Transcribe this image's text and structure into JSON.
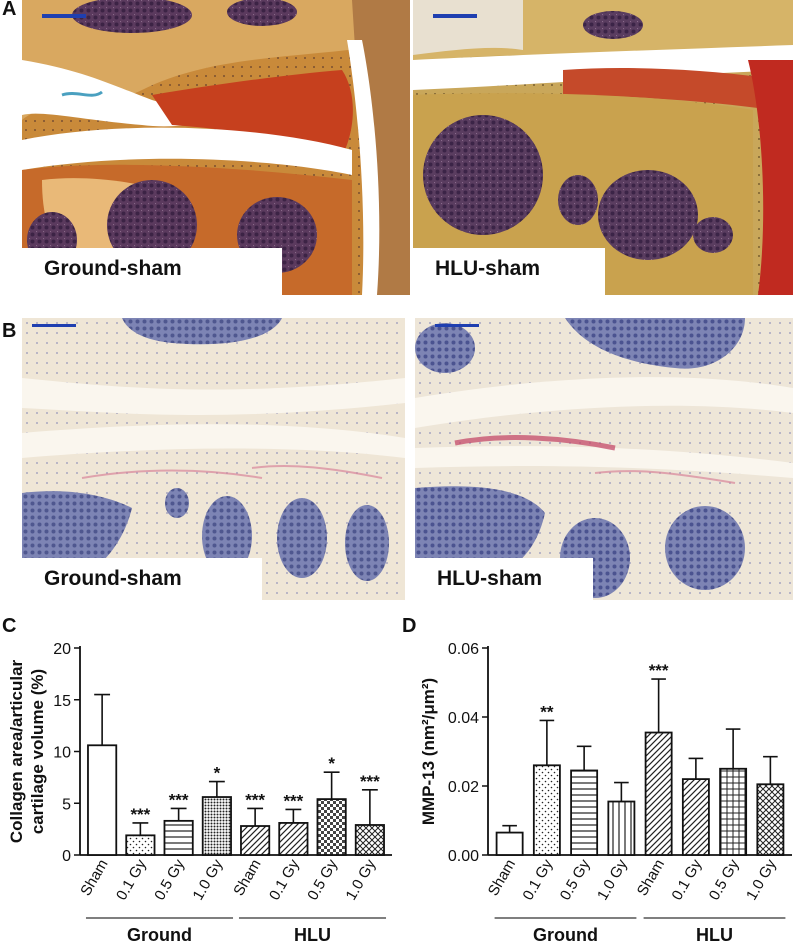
{
  "panels": {
    "A": {
      "letter": "A",
      "left_label": "Ground-sham",
      "right_label": "HLU-sham"
    },
    "B": {
      "letter": "B",
      "left_label": "Ground-sham",
      "right_label": "HLU-sham"
    },
    "C": {
      "letter": "C"
    },
    "D": {
      "letter": "D"
    }
  },
  "colors": {
    "stain_A_matrix": "#c9923a",
    "stain_A_red": "#c6401e",
    "stain_A_marrow": "#5b3a5e",
    "stain_B_background": "#efe6d6",
    "stain_B_marrow": "#6e76a8",
    "stain_B_pink": "#d8849a",
    "bar_outline": "#111111"
  },
  "chart_data": [
    {
      "type": "bar",
      "panel": "C",
      "categories": [
        "Sham",
        "0.1 Gy",
        "0.5 Gy",
        "1.0 Gy",
        "Sham",
        "0.1 Gy",
        "0.5 Gy",
        "1.0 Gy"
      ],
      "groups": [
        {
          "name": "Ground",
          "span": [
            0,
            3
          ]
        },
        {
          "name": "HLU",
          "span": [
            4,
            7
          ]
        }
      ],
      "values": [
        10.6,
        1.9,
        3.3,
        5.6,
        2.8,
        3.1,
        5.4,
        2.9
      ],
      "errors": [
        4.9,
        1.2,
        1.2,
        1.5,
        1.7,
        1.3,
        2.6,
        3.4
      ],
      "significance": [
        "",
        "***",
        "***",
        "*",
        "***",
        "***",
        "*",
        "***"
      ],
      "patterns": [
        "none",
        "dots",
        "hlines",
        "dense-dots",
        "diag",
        "diag",
        "checker",
        "cross"
      ],
      "ylabel_lines": [
        "Collagen area/articular",
        "cartilage volume (%)"
      ],
      "ylim": [
        0,
        20
      ],
      "yticks": [
        "0",
        "5",
        "10",
        "15",
        "20"
      ],
      "ytick_values": [
        0,
        5,
        10,
        15,
        20
      ]
    },
    {
      "type": "bar",
      "panel": "D",
      "categories": [
        "Sham",
        "0.1 Gy",
        "0.5 Gy",
        "1.0 Gy",
        "Sham",
        "0.1 Gy",
        "0.5 Gy",
        "1.0 Gy"
      ],
      "groups": [
        {
          "name": "Ground",
          "span": [
            0,
            3
          ]
        },
        {
          "name": "HLU",
          "span": [
            4,
            7
          ]
        }
      ],
      "values": [
        0.0065,
        0.026,
        0.0245,
        0.0155,
        0.0355,
        0.022,
        0.025,
        0.0205
      ],
      "errors": [
        0.002,
        0.013,
        0.007,
        0.0055,
        0.0155,
        0.006,
        0.0115,
        0.008
      ],
      "significance": [
        "",
        "**",
        "",
        "",
        "***",
        "",
        "",
        ""
      ],
      "patterns": [
        "none",
        "dots",
        "hlines",
        "vlines",
        "diag",
        "diag",
        "grid",
        "cross"
      ],
      "ylabel": "MMP-13 (nm²/μm²)",
      "ylim": [
        0,
        0.06
      ],
      "yticks": [
        "0.00",
        "0.02",
        "0.04",
        "0.06"
      ],
      "ytick_values": [
        0,
        0.02,
        0.04,
        0.06
      ]
    }
  ]
}
